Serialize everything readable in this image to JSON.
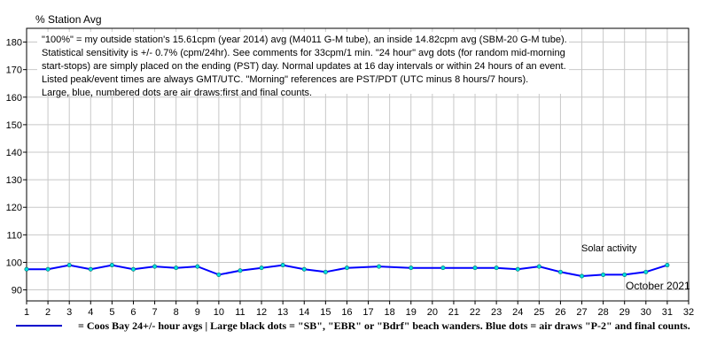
{
  "chart_data": {
    "type": "line",
    "ylabel": "% Station Avg",
    "xlim": [
      1,
      32
    ],
    "ylim": [
      86,
      185
    ],
    "x_ticks": [
      1,
      2,
      3,
      4,
      5,
      6,
      7,
      8,
      9,
      10,
      11,
      12,
      13,
      14,
      15,
      16,
      17,
      18,
      19,
      20,
      21,
      22,
      23,
      24,
      25,
      26,
      27,
      28,
      29,
      30,
      31,
      32
    ],
    "y_ticks": [
      90,
      100,
      110,
      120,
      130,
      140,
      150,
      160,
      170,
      180
    ],
    "grid": true,
    "notes": [
      "\"100%\" = my outside station's 15.61cpm (year 2014) avg (M4011 G-M tube), an inside 14.82cpm avg (SBM-20 G-M tube).",
      "Statistical sensitivity is +/- 0.7% (cpm/24hr). See comments for 33cpm/1 min. \"24 hour\" avg dots (for random mid-morning",
      "start-stops) are simply placed on the ending (PST) day. Normal updates at 16 day intervals or within 24 hours of an event.",
      "Listed peak/event times are always GMT/UTC.  \"Morning\" references are PST/PDT (UTC minus 8 hours/7 hours).",
      "Large, blue, numbered dots are air draws:first and final counts."
    ],
    "annotation": "Solar activity",
    "month_label": "October 2021",
    "series": [
      {
        "name": "Coos Bay 24+/- hour avgs",
        "color": "#0000ff",
        "marker_color": "#00dddd",
        "x": [
          1,
          2,
          3,
          4,
          5,
          6,
          7,
          8,
          9,
          10,
          11,
          12,
          13,
          14,
          15,
          16,
          17.5,
          19,
          20.5,
          22,
          23,
          24,
          25,
          26,
          27,
          28,
          29,
          30,
          31
        ],
        "y": [
          97.5,
          97.5,
          99,
          97.5,
          99,
          97.5,
          98.5,
          98,
          98.5,
          95.5,
          97,
          98,
          99,
          97.5,
          96.5,
          98,
          98.5,
          98,
          98,
          98,
          98,
          97.5,
          98.5,
          96.5,
          95,
          95.5,
          95.5,
          96.5,
          99
        ]
      }
    ],
    "legend_text": "= Coos Bay 24+/- hour avgs | Large black dots = \"SB\", \"EBR\" or \"Bdrf\" beach wanders. Blue dots = air draws \"P-2\" and final counts.",
    "legend_color": "#0000cc"
  }
}
